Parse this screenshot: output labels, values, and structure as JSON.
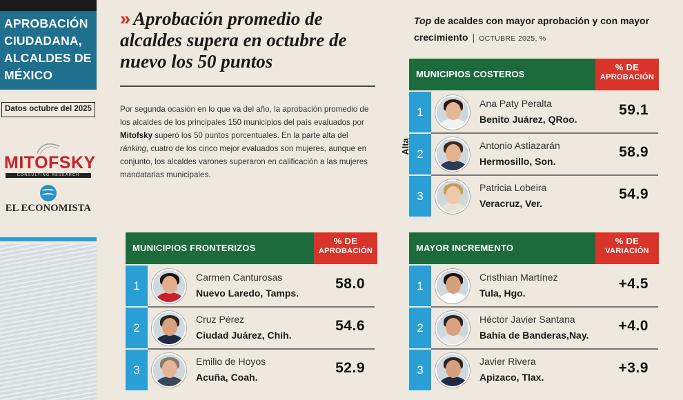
{
  "sidebar": {
    "title_lines": [
      "APROBACIÓN",
      "CIUDADANA,",
      "ALCALDES DE",
      "MÉXICO"
    ],
    "date_box": "Datos octubre del 2025",
    "logo_mitofsky": "MITOFSKY",
    "logo_mitofsky_sub": "CONSULTING RESEARCH",
    "logo_economista": "EL ECONOMISTA"
  },
  "headline": {
    "chevron": "»",
    "text": "Aprobación promedio de alcaldes supera en octubre de nuevo los 50 puntos"
  },
  "body": {
    "p1": "Por segunda ocasión en lo que va del año, la aprobación promedio de los alcaldes de los principales 150 municipios del país evaluados por ",
    "bold": "Mitofsky",
    "p2": " superó los 50 puntos porcentuales. En la parte alta del ",
    "italic": "ránking",
    "p3": ", cuatro de los cinco mejor evaluados son mujeres, aunque en conjunto, los alcaldes varones superaron en calificación a las mujeres mandatarias municipales."
  },
  "right_header": {
    "top_word": "Top",
    "line1_rest": " de acaldes con mayor aprobación y con mayor",
    "line2": "crecimiento",
    "separator": "|",
    "date": "OCTUBRE 2025, %"
  },
  "side_label": "Alta",
  "tables": {
    "costeros": {
      "title": "MUNICIPIOS COSTEROS",
      "col_line1": "% DE",
      "col_line2": "APROBACIÓN",
      "rows": [
        {
          "rank": "1",
          "name": "Ana Paty Peralta",
          "place": "Benito Juárez, QRoo.",
          "value": "59.1"
        },
        {
          "rank": "2",
          "name": "Antonio Astiazarán",
          "place": "Hermosillo, Son.",
          "value": "58.9"
        },
        {
          "rank": "3",
          "name": "Patricia Lobeira",
          "place": "Veracruz, Ver.",
          "value": "54.9"
        }
      ]
    },
    "fronterizos": {
      "title": "MUNICIPIOS FRONTERIZOS",
      "col_line1": "% DE",
      "col_line2": "APROBACIÓN",
      "rows": [
        {
          "rank": "1",
          "name": "Carmen Canturosas",
          "place": "Nuevo Laredo, Tamps.",
          "value": "58.0"
        },
        {
          "rank": "2",
          "name": "Cruz Pérez",
          "place": "Ciudad Juárez, Chih.",
          "value": "54.6"
        },
        {
          "rank": "3",
          "name": "Emilio de Hoyos",
          "place": "Acuña, Coah.",
          "value": "52.9"
        }
      ]
    },
    "incremento": {
      "title": "MAYOR INCREMENTO",
      "col_line1": "% DE",
      "col_line2": "VARIACIÓN",
      "rows": [
        {
          "rank": "1",
          "name": "Cristhian Martínez",
          "place": "Tula, Hgo.",
          "value": "+4.5"
        },
        {
          "rank": "2",
          "name": "Héctor Javier Santana",
          "place": "Bahía de Banderas,Nay.",
          "value": "+4.0"
        },
        {
          "rank": "3",
          "name": "Javier Rivera",
          "place": "Apizaco, Tlax.",
          "value": "+3.9"
        }
      ]
    }
  },
  "colors": {
    "sidebar_blue": "#1f6f8f",
    "header_green": "#1d6b3c",
    "column_red": "#d8342a",
    "rank_blue": "#2a9fd6",
    "chevron_red": "#d9281c",
    "logo_red": "#c8212b"
  }
}
